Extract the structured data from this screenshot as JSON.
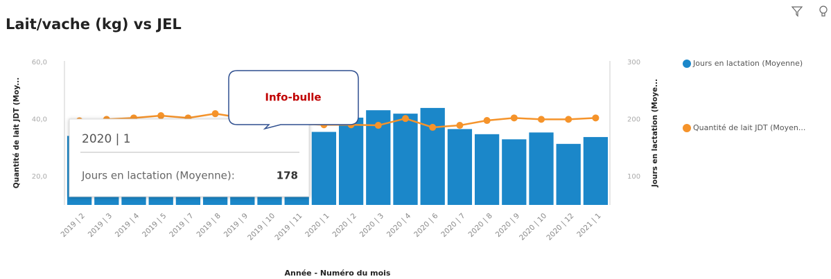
{
  "chart_data": {
    "type": "combo",
    "title": "Lait/vache (kg) vs JEL",
    "x_label": "Année - Numéro du mois",
    "y_label": "Quantité de lait JDT (Moy...",
    "y2_label": "Jours en lactation (Moye...",
    "categories": [
      "2019 | 2",
      "2019 | 3",
      "2019 | 4",
      "2019 | 5",
      "2019 | 7",
      "2019 | 8",
      "2019 | 9",
      "2019 | 10",
      "2019 | 11",
      "2020 | 1",
      "2020 | 2",
      "2020 | 3",
      "2020 | 4",
      "2020 | 6",
      "2020 | 7",
      "2020 | 8",
      "2020 | 9",
      "2020 | 10",
      "2020 | 12",
      "2021 | 1"
    ],
    "ylim": [
      10,
      60
    ],
    "yticks": [
      {
        "value": 20,
        "label": "20,0"
      },
      {
        "value": 40,
        "label": "40,0"
      },
      {
        "value": 60,
        "label": "60,0"
      }
    ],
    "y2lim": [
      50,
      300
    ],
    "y2ticks": [
      100,
      200,
      300
    ],
    "grid": false,
    "legend_position": "right",
    "series": [
      {
        "name": "Jours en lactation (Moyenne)",
        "type": "bar",
        "axis": "y2",
        "color": "#1b87c9",
        "values": [
          171,
          172,
          170,
          168,
          170,
          172,
          171,
          169,
          170,
          178,
          203,
          216,
          210,
          220,
          183,
          174,
          165,
          177,
          157,
          169
        ]
      },
      {
        "name": "Quantité de lait JDT (Moyen...",
        "type": "line",
        "axis": "y",
        "color": "#f5932a",
        "values": [
          39.5,
          40,
          40.5,
          41.3,
          40.5,
          42,
          40.5,
          39,
          38.5,
          38.1,
          38.1,
          37.9,
          40.3,
          37.2,
          37.9,
          39.6,
          40.5,
          40,
          40,
          40.5
        ]
      }
    ],
    "tooltip": {
      "title": "2020 | 1",
      "label": "Jours en lactation (Moyenne):",
      "value": "178"
    },
    "annotation": "Info-bulle"
  }
}
